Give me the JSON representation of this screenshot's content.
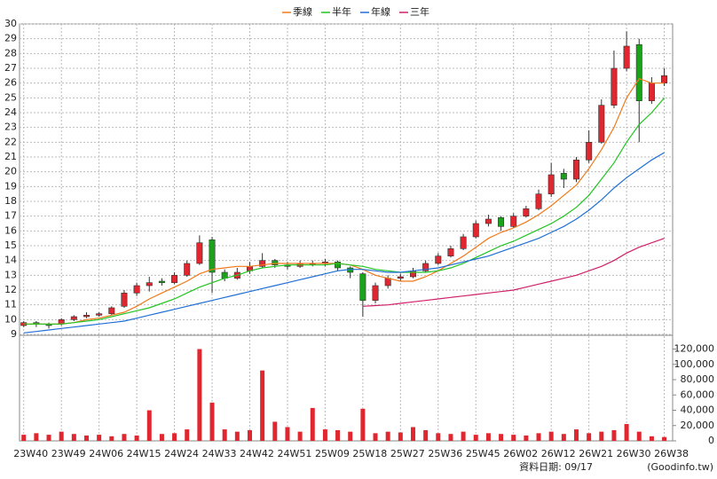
{
  "chart_data": {
    "type": "candlestick",
    "x": [
      0,
      3,
      6,
      9,
      12,
      15,
      18,
      21,
      24,
      27,
      30,
      33,
      36,
      39,
      42,
      45,
      48,
      51,
      54,
      57,
      60,
      63,
      66,
      69,
      72,
      75,
      78,
      81,
      84,
      87,
      90,
      93,
      96,
      99,
      102,
      105,
      108,
      111,
      114,
      117,
      120,
      123,
      126,
      129,
      132,
      135,
      138,
      141,
      144,
      147,
      150,
      153
    ],
    "ohlc": [
      [
        9.6,
        9.9,
        9.5,
        9.8
      ],
      [
        9.8,
        9.9,
        9.5,
        9.7
      ],
      [
        9.7,
        9.8,
        9.4,
        9.6
      ],
      [
        9.7,
        10.1,
        9.6,
        10.0
      ],
      [
        10.0,
        10.3,
        9.9,
        10.2
      ],
      [
        10.2,
        10.5,
        10.1,
        10.3
      ],
      [
        10.3,
        10.5,
        10.2,
        10.4
      ],
      [
        10.4,
        10.9,
        10.3,
        10.8
      ],
      [
        10.9,
        12.0,
        10.8,
        11.8
      ],
      [
        11.8,
        12.5,
        11.6,
        12.3
      ],
      [
        12.3,
        12.9,
        11.9,
        12.5
      ],
      [
        12.6,
        12.8,
        12.3,
        12.5
      ],
      [
        12.5,
        13.2,
        12.4,
        13.0
      ],
      [
        13.0,
        14.0,
        12.9,
        13.8
      ],
      [
        13.8,
        15.7,
        13.7,
        15.2
      ],
      [
        15.4,
        15.6,
        11.8,
        13.2
      ],
      [
        13.2,
        13.4,
        12.6,
        12.8
      ],
      [
        12.8,
        13.5,
        12.7,
        13.2
      ],
      [
        13.3,
        13.9,
        13.1,
        13.6
      ],
      [
        13.6,
        14.5,
        13.5,
        14.0
      ],
      [
        14.0,
        14.1,
        13.5,
        13.7
      ],
      [
        13.7,
        13.9,
        13.4,
        13.6
      ],
      [
        13.6,
        14.0,
        13.5,
        13.8
      ],
      [
        13.8,
        14.0,
        13.6,
        13.8
      ],
      [
        13.8,
        14.1,
        13.6,
        13.9
      ],
      [
        13.9,
        14.0,
        13.3,
        13.5
      ],
      [
        13.5,
        13.6,
        12.8,
        13.2
      ],
      [
        13.1,
        13.2,
        10.2,
        11.3
      ],
      [
        11.3,
        12.5,
        11.1,
        12.3
      ],
      [
        12.3,
        13.0,
        12.1,
        12.8
      ],
      [
        12.8,
        13.1,
        12.6,
        12.9
      ],
      [
        12.9,
        13.5,
        12.8,
        13.3
      ],
      [
        13.3,
        14.0,
        13.2,
        13.8
      ],
      [
        13.8,
        14.5,
        13.7,
        14.3
      ],
      [
        14.3,
        15.0,
        14.2,
        14.8
      ],
      [
        14.8,
        15.8,
        14.7,
        15.6
      ],
      [
        15.6,
        16.7,
        15.5,
        16.5
      ],
      [
        16.5,
        17.1,
        16.3,
        16.8
      ],
      [
        16.9,
        17.0,
        16.0,
        16.3
      ],
      [
        16.3,
        17.2,
        16.2,
        17.0
      ],
      [
        17.0,
        17.7,
        16.9,
        17.5
      ],
      [
        17.5,
        18.8,
        17.4,
        18.5
      ],
      [
        18.5,
        20.6,
        18.3,
        19.8
      ],
      [
        19.9,
        20.2,
        18.9,
        19.5
      ],
      [
        19.5,
        21.0,
        19.3,
        20.8
      ],
      [
        20.8,
        22.8,
        20.6,
        22.0
      ],
      [
        22.0,
        24.9,
        21.9,
        24.5
      ],
      [
        24.5,
        28.2,
        24.3,
        27.0
      ],
      [
        27.0,
        29.5,
        26.8,
        28.5
      ],
      [
        28.6,
        29.0,
        22.0,
        24.8
      ],
      [
        24.8,
        26.4,
        24.6,
        26.0
      ],
      [
        26.0,
        27.0,
        25.8,
        26.5
      ]
    ],
    "up_color": "#e0262e",
    "down_color": "#1aa31a",
    "volume": [
      8000,
      10000,
      8000,
      12000,
      9000,
      7000,
      8000,
      6000,
      9000,
      7000,
      40000,
      9000,
      10000,
      15000,
      120000,
      50000,
      15000,
      12000,
      14000,
      92000,
      25000,
      18000,
      12000,
      43000,
      15000,
      14000,
      12000,
      42000,
      10000,
      12000,
      11000,
      18000,
      14000,
      10000,
      9000,
      12000,
      8000,
      10000,
      9000,
      8000,
      7000,
      10000,
      12000,
      9000,
      15000,
      10000,
      12000,
      14000,
      22000,
      12000,
      6000,
      5000
    ],
    "volume_color": "#e0262e",
    "series": [
      {
        "name": "季線",
        "color": "#f07a1a",
        "values": [
          9.7,
          9.7,
          9.7,
          9.7,
          9.8,
          10.0,
          10.1,
          10.3,
          10.5,
          10.9,
          11.4,
          11.8,
          12.2,
          12.6,
          13.1,
          13.4,
          13.5,
          13.6,
          13.6,
          13.7,
          13.8,
          13.8,
          13.8,
          13.8,
          13.8,
          13.8,
          13.7,
          13.4,
          13.0,
          12.8,
          12.6,
          12.6,
          12.9,
          13.3,
          13.8,
          14.3,
          14.9,
          15.5,
          15.9,
          16.2,
          16.6,
          17.1,
          17.7,
          18.4,
          19.1,
          20.2,
          21.5,
          23.0,
          25.0,
          26.3,
          26.0,
          26.0
        ]
      },
      {
        "name": "半年",
        "color": "#22c422",
        "values": [
          9.7,
          9.7,
          9.7,
          9.7,
          9.8,
          9.9,
          10.0,
          10.2,
          10.4,
          10.6,
          10.8,
          11.1,
          11.4,
          11.8,
          12.2,
          12.5,
          12.8,
          13.0,
          13.3,
          13.5,
          13.6,
          13.7,
          13.7,
          13.7,
          13.7,
          13.8,
          13.7,
          13.6,
          13.4,
          13.3,
          13.2,
          13.2,
          13.2,
          13.3,
          13.5,
          13.8,
          14.2,
          14.6,
          15.0,
          15.3,
          15.7,
          16.1,
          16.5,
          17.0,
          17.6,
          18.4,
          19.5,
          20.6,
          22.0,
          23.2,
          24.0,
          25.0
        ]
      },
      {
        "name": "年線",
        "color": "#1f6fd6",
        "values": [
          9.1,
          9.2,
          9.3,
          9.4,
          9.5,
          9.6,
          9.7,
          9.8,
          9.9,
          10.1,
          10.3,
          10.5,
          10.7,
          10.9,
          11.1,
          11.3,
          11.5,
          11.7,
          11.9,
          12.1,
          12.3,
          12.5,
          12.7,
          12.9,
          13.1,
          13.3,
          13.4,
          13.4,
          13.3,
          13.2,
          13.2,
          13.3,
          13.4,
          13.5,
          13.7,
          13.9,
          14.1,
          14.3,
          14.6,
          14.9,
          15.2,
          15.5,
          15.9,
          16.3,
          16.8,
          17.4,
          18.1,
          18.9,
          19.6,
          20.2,
          20.8,
          21.3
        ]
      },
      {
        "name": "三年",
        "color": "#d0206a",
        "values": [
          null,
          null,
          null,
          null,
          null,
          null,
          null,
          null,
          null,
          null,
          null,
          null,
          null,
          null,
          null,
          null,
          null,
          null,
          null,
          null,
          null,
          null,
          null,
          null,
          null,
          null,
          null,
          10.9,
          10.95,
          11.0,
          11.1,
          11.2,
          11.3,
          11.4,
          11.5,
          11.6,
          11.7,
          11.8,
          11.9,
          12.0,
          12.2,
          12.4,
          12.6,
          12.8,
          13.0,
          13.3,
          13.6,
          14.0,
          14.5,
          14.9,
          15.2,
          15.5
        ]
      }
    ],
    "xlim": [
      -1,
      155
    ],
    "xticks": [
      {
        "value": 0,
        "label": "23W40"
      },
      {
        "value": 9,
        "label": "23W49"
      },
      {
        "value": 18,
        "label": "24W06"
      },
      {
        "value": 27,
        "label": "24W15"
      },
      {
        "value": 36,
        "label": "24W24"
      },
      {
        "value": 45,
        "label": "24W33"
      },
      {
        "value": 54,
        "label": "24W42"
      },
      {
        "value": 63,
        "label": "24W51"
      },
      {
        "value": 72,
        "label": "25W09"
      },
      {
        "value": 81,
        "label": "25W18"
      },
      {
        "value": 90,
        "label": "25W27"
      },
      {
        "value": 99,
        "label": "25W36"
      },
      {
        "value": 108,
        "label": "25W45"
      },
      {
        "value": 117,
        "label": "26W02"
      },
      {
        "value": 126,
        "label": "26W12"
      },
      {
        "value": 135,
        "label": "26W21"
      },
      {
        "value": 144,
        "label": "26W30"
      },
      {
        "value": 153,
        "label": "26W38"
      }
    ],
    "ylim": [
      9,
      30
    ],
    "yticks": [
      9,
      10,
      11,
      12,
      13,
      14,
      15,
      16,
      17,
      18,
      19,
      20,
      21,
      22,
      23,
      24,
      25,
      26,
      27,
      28,
      29,
      30
    ],
    "volume_ylim": [
      0,
      138000
    ],
    "volume_yticks": [
      0,
      {
        "value": 20000,
        "label": "20,000"
      },
      {
        "value": 40000,
        "label": "40,000"
      },
      {
        "value": 60000,
        "label": "60,000"
      },
      {
        "value": 80000,
        "label": "80,000"
      },
      {
        "value": 100000,
        "label": "100,000"
      },
      {
        "value": 120000,
        "label": "120,000"
      }
    ],
    "grid": true,
    "date_label": "資料日期: 09/17",
    "source": "(Goodinfo.tw)"
  }
}
